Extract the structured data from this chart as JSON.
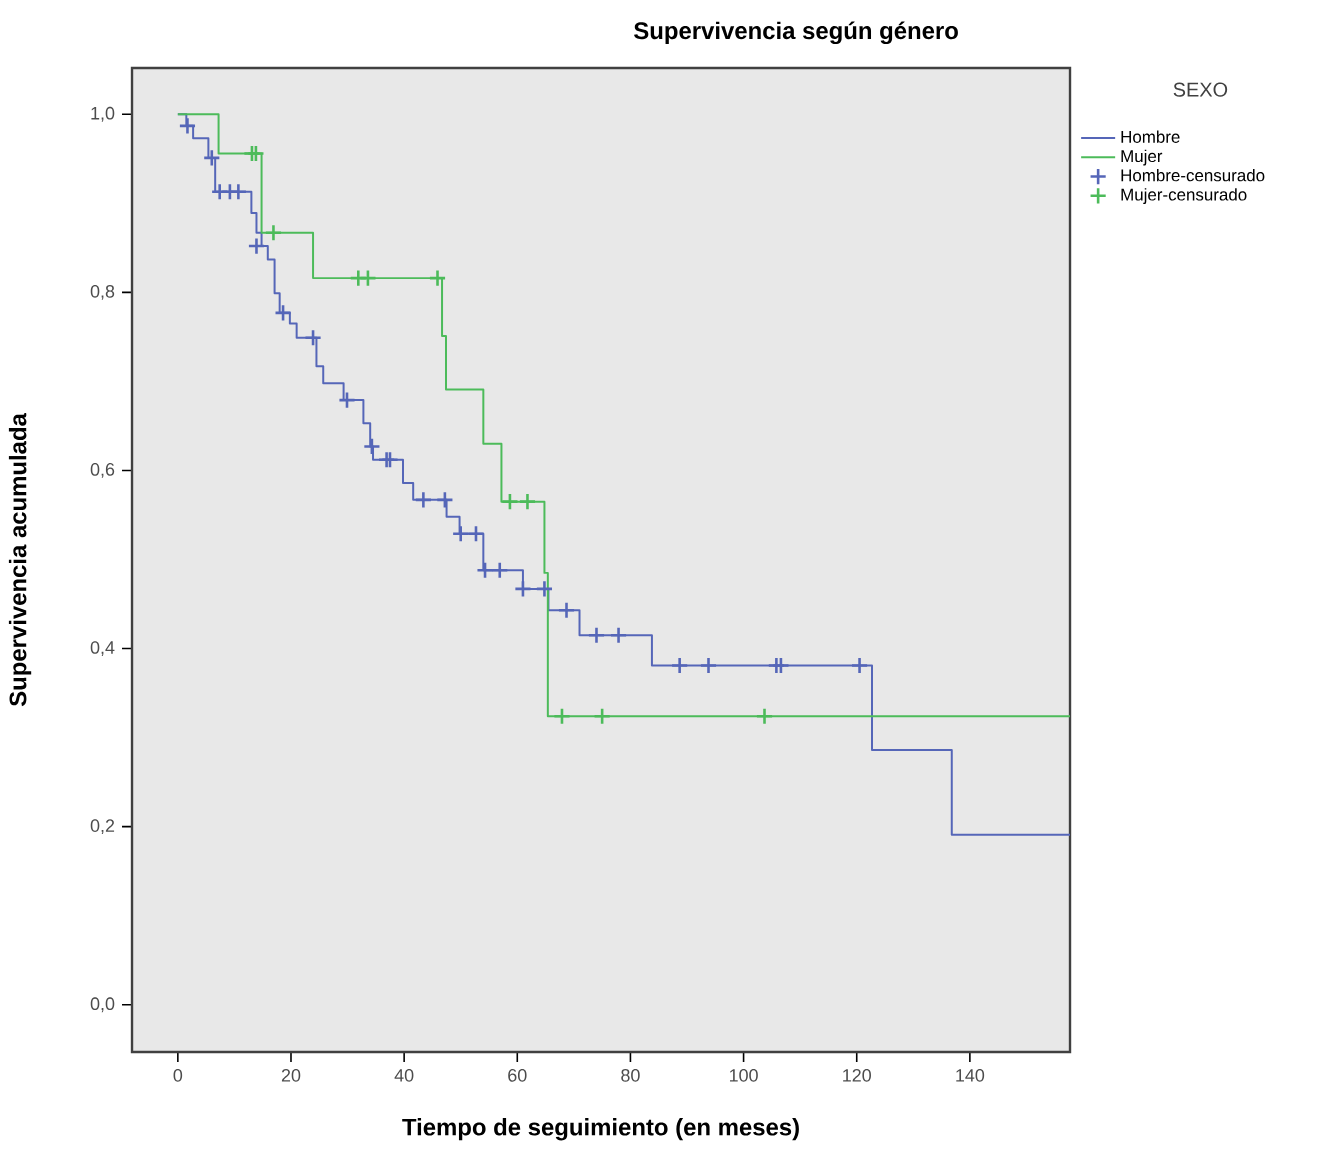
{
  "chart_data": {
    "type": "step",
    "title": "Supervivencia según género",
    "xlabel": "Tiempo de seguimiento (en meses)",
    "ylabel": "Supervivencia acumulada",
    "legend_title": "SEXO",
    "legend": "top right",
    "grid": false,
    "xlim": [
      -8.1,
      157.7
    ],
    "ylim": [
      -0.053,
      1.052
    ],
    "xticks": [
      0,
      20,
      40,
      60,
      80,
      100,
      120,
      140
    ],
    "yticks": [
      {
        "value": 0,
        "label": "0,0"
      },
      {
        "value": 0.2,
        "label": "0,2"
      },
      {
        "value": 0.4,
        "label": "0,4"
      },
      {
        "value": 0.6,
        "label": "0,6"
      },
      {
        "value": 0.8,
        "label": "0,8"
      },
      {
        "value": 1.0,
        "label": "1,0"
      }
    ],
    "series": [
      {
        "name": "Hombre",
        "color": "#5566b8",
        "marker": "none",
        "x": [
          0,
          1.5,
          2.7,
          5.4,
          6.6,
          13.0,
          13.9,
          14.8,
          15.9,
          17.1,
          18.0,
          19.8,
          21.0,
          24.5,
          25.7,
          29.3,
          32.8,
          34.0,
          34.5,
          39.8,
          41.6,
          47.5,
          49.8,
          54.0,
          61.0,
          65.5,
          71.0,
          83.8,
          122.7,
          136.8,
          157.7
        ],
        "values": [
          1.0,
          0.987,
          0.973,
          0.951,
          0.913,
          0.889,
          0.867,
          0.852,
          0.837,
          0.799,
          0.777,
          0.765,
          0.749,
          0.717,
          0.698,
          0.679,
          0.653,
          0.627,
          0.612,
          0.586,
          0.567,
          0.548,
          0.529,
          0.488,
          0.467,
          0.443,
          0.415,
          0.381,
          0.286,
          0.191,
          0.191
        ]
      },
      {
        "name": "Mujer",
        "color": "#4cbb5a",
        "marker": "none",
        "x": [
          0,
          7.2,
          14.8,
          23.9,
          46.7,
          47.4,
          54.0,
          57.2,
          64.8,
          65.4,
          157.7
        ],
        "values": [
          1.0,
          0.956,
          0.867,
          0.816,
          0.751,
          0.691,
          0.63,
          0.565,
          0.485,
          0.324,
          0.324
        ]
      },
      {
        "name": "Hombre-censurado",
        "type": "scatter",
        "color": "#5566b8",
        "marker": "cross",
        "x": [
          1.7,
          6.0,
          7.4,
          9.2,
          10.7,
          13.9,
          18.6,
          23.9,
          29.9,
          34.3,
          36.9,
          37.5,
          43.4,
          47.2,
          50.0,
          52.7,
          54.3,
          56.9,
          61.0,
          64.8,
          68.7,
          74.0,
          77.9,
          88.7,
          93.8,
          105.8,
          106.6,
          120.5
        ],
        "values": [
          0.987,
          0.951,
          0.913,
          0.913,
          0.913,
          0.852,
          0.777,
          0.749,
          0.679,
          0.627,
          0.612,
          0.612,
          0.567,
          0.567,
          0.529,
          0.529,
          0.488,
          0.488,
          0.467,
          0.467,
          0.443,
          0.415,
          0.415,
          0.381,
          0.381,
          0.381,
          0.381,
          0.381
        ]
      },
      {
        "name": "Mujer-censurado",
        "type": "scatter",
        "color": "#4cbb5a",
        "marker": "cross",
        "x": [
          13.1,
          13.8,
          16.9,
          31.9,
          33.6,
          45.9,
          58.7,
          61.8,
          67.9,
          75.0,
          103.7
        ],
        "values": [
          0.956,
          0.956,
          0.867,
          0.816,
          0.816,
          0.816,
          0.565,
          0.565,
          0.324,
          0.324,
          0.324
        ]
      }
    ]
  }
}
